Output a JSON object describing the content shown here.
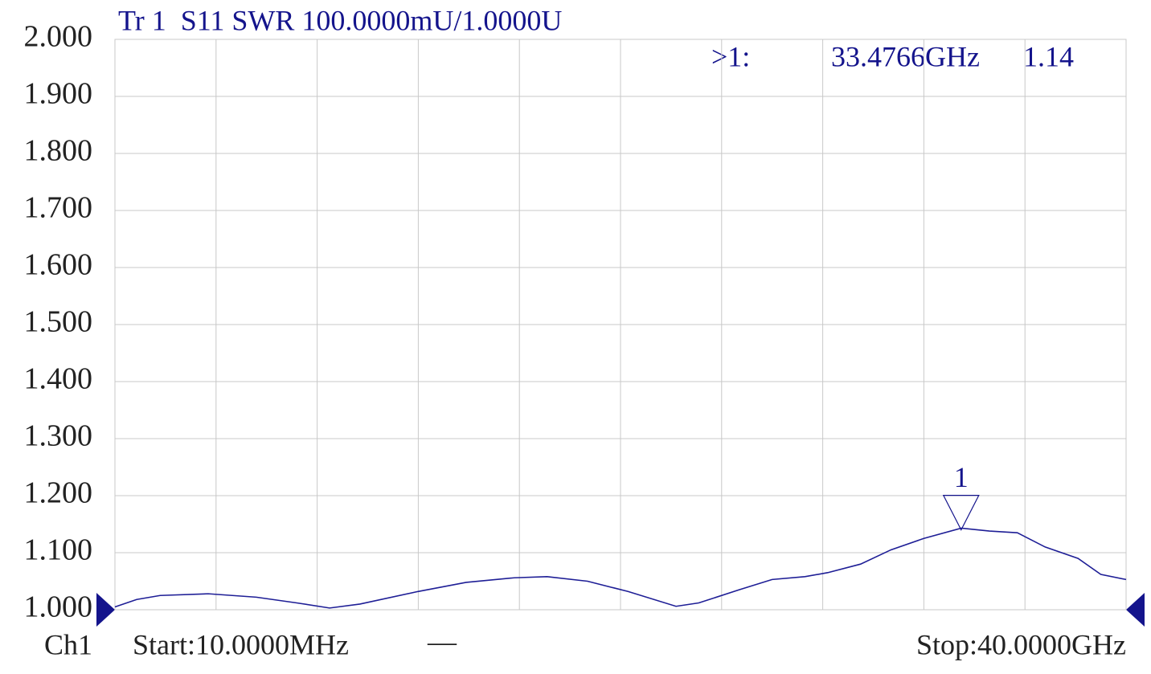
{
  "chart_data": {
    "type": "line",
    "title": "Tr 1  S11 SWR 100.0000mU/1.0000U",
    "channel": "Ch1",
    "start_label": "Start:10.0000MHz",
    "stop_label": "Stop:40.0000GHz",
    "trace_indicator": "—",
    "xlim": [
      0.01,
      40
    ],
    "xgrid_divisions": 10,
    "ylim": [
      1,
      2
    ],
    "yticks": [
      {
        "value": 1,
        "label": "1.000"
      },
      {
        "value": 1.1,
        "label": "1.100"
      },
      {
        "value": 1.2,
        "label": "1.200"
      },
      {
        "value": 1.3,
        "label": "1.300"
      },
      {
        "value": 1.4,
        "label": "1.400"
      },
      {
        "value": 1.5,
        "label": "1.500"
      },
      {
        "value": 1.6,
        "label": "1.600"
      },
      {
        "value": 1.7,
        "label": "1.700"
      },
      {
        "value": 1.8,
        "label": "1.800"
      },
      {
        "value": 1.9,
        "label": "1.900"
      },
      {
        "value": 2,
        "label": "2.000"
      }
    ],
    "grid": true,
    "series": [
      {
        "name": "S11",
        "color": "#1e1e96",
        "x": [
          0.01,
          0.87,
          1.8,
          3.7,
          5.6,
          7.2,
          8.5,
          9.7,
          12.0,
          13.9,
          15.8,
          17.1,
          18.7,
          20.3,
          22.2,
          23.1,
          24.7,
          26.0,
          27.3,
          28.2,
          29.5,
          30.7,
          32.0,
          33.48,
          34.6,
          35.7,
          36.8,
          38.1,
          39.0,
          40.0
        ],
        "values": [
          1.005,
          1.018,
          1.025,
          1.028,
          1.022,
          1.012,
          1.003,
          1.01,
          1.032,
          1.048,
          1.056,
          1.058,
          1.05,
          1.032,
          1.006,
          1.012,
          1.035,
          1.053,
          1.058,
          1.065,
          1.08,
          1.105,
          1.125,
          1.143,
          1.138,
          1.135,
          1.11,
          1.09,
          1.062,
          1.053
        ]
      }
    ],
    "marker": {
      "label": "1",
      "readout_id": ">1:",
      "readout_freq": "33.4766GHz",
      "readout_value": "1.14",
      "x": 33.4766,
      "value": 1.14
    }
  }
}
